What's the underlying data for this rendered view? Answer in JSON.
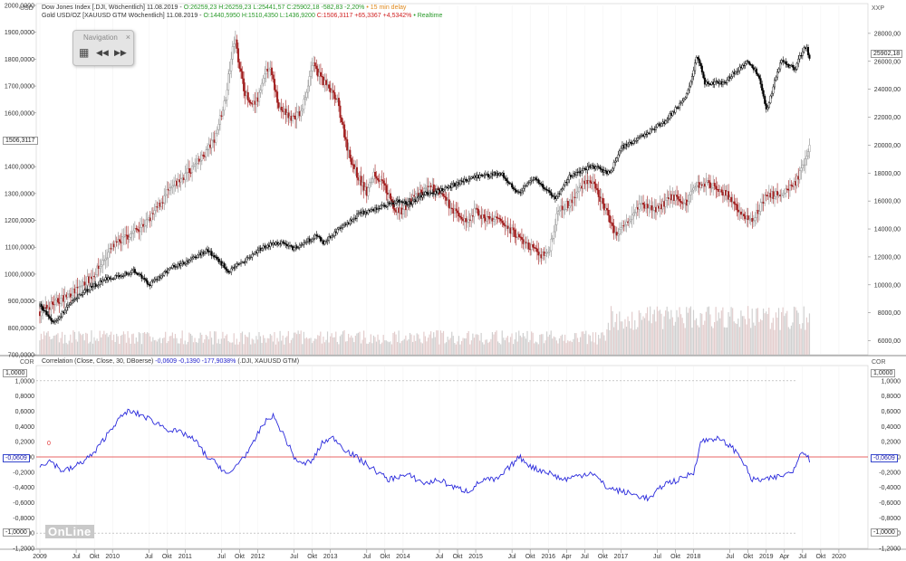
{
  "header": {
    "upper_left_unit": "USD",
    "upper_right_unit": "XXP",
    "lower_left_unit": "COR",
    "lower_right_unit": "COR",
    "line1_name": "Dow Jones Index [.DJI, Wöchentlich] 11.08.2019 -",
    "line1_values": "O:26259,23 H:26259,23 L:25441,57",
    "line1_change": "C:25902,18 -582,83 -2,20%",
    "line1_delay": "• 15 min delay",
    "line2_name": "Gold USD/OZ [XAUUSD GTM Wöchentlich] 11.08.2019 -",
    "line2_values": "O:1440,5950 H:1510,4350 L:1436,9200",
    "line2_change": "C:1506,3117 +65,3367 +4,5342%",
    "line2_realtime": "• Realtime",
    "corr_name": "Correlation (Close, Close, 30, DBoerse)",
    "corr_values": "-0,0609 -0,1390 -177,9038%",
    "corr_symbols": "(.DJI, XAUUSD GTM)"
  },
  "navigation": {
    "title": "Navigation",
    "close": "×",
    "grid_icon": "▦",
    "back_icon": "◀◀",
    "forward_icon": "▶▶"
  },
  "badges": {
    "gold_last": "1506,3117",
    "dow_last": "25902,18",
    "corr_left": "-0,0609",
    "corr_right": "-0,0609",
    "upper_line_left": "1,0000",
    "upper_line_right": "1,0000",
    "lower_line_left": "-1,0000",
    "lower_line_right": "-1,0000",
    "zero_label": "0"
  },
  "watermark": "OnLine",
  "colors": {
    "dow": "#000000",
    "gold_up": "#8c8c8c",
    "gold_down": "#a01c1c",
    "corr": "#2a2adc",
    "zero": "#e23030",
    "volume": "#e3cdcd",
    "volume_up": "#d0d0d0"
  },
  "chart_data": [
    {
      "type": "line",
      "ohlc_style": "candlestick",
      "series": [
        {
          "name": "Gold USD/OZ [XAUUSD GTM Wöchentlich]",
          "axis": "left",
          "x": [
            2009.0,
            2009.25,
            2009.5,
            2009.75,
            2010.0,
            2010.25,
            2010.5,
            2010.75,
            2011.0,
            2011.2,
            2011.4,
            2011.55,
            2011.68,
            2011.8,
            2011.9,
            2012.0,
            2012.15,
            2012.3,
            2012.45,
            2012.6,
            2012.75,
            2012.85,
            2012.95,
            2013.1,
            2013.25,
            2013.35,
            2013.5,
            2013.6,
            2013.75,
            2013.9,
            2014.0,
            2014.2,
            2014.4,
            2014.5,
            2014.75,
            2014.9,
            2015.0,
            2015.1,
            2015.3,
            2015.5,
            2015.7,
            2015.9,
            2016.0,
            2016.15,
            2016.3,
            2016.5,
            2016.6,
            2016.75,
            2016.95,
            2017.0,
            2017.25,
            2017.5,
            2017.7,
            2017.9,
            2018.0,
            2018.2,
            2018.45,
            2018.65,
            2018.8,
            2019.0,
            2019.2,
            2019.4,
            2019.55,
            2019.61
          ],
          "values": [
            860,
            900,
            940,
            1000,
            1100,
            1150,
            1200,
            1300,
            1370,
            1420,
            1500,
            1650,
            1880,
            1700,
            1620,
            1650,
            1780,
            1620,
            1580,
            1600,
            1780,
            1740,
            1700,
            1640,
            1450,
            1380,
            1300,
            1380,
            1320,
            1230,
            1240,
            1300,
            1320,
            1300,
            1220,
            1190,
            1240,
            1210,
            1200,
            1160,
            1110,
            1070,
            1080,
            1250,
            1260,
            1350,
            1340,
            1260,
            1140,
            1170,
            1260,
            1240,
            1290,
            1260,
            1330,
            1340,
            1300,
            1220,
            1200,
            1290,
            1300,
            1340,
            1420,
            1506
          ]
        },
        {
          "name": "Dow Jones Index [.DJI, Wöchentlich]",
          "axis": "right",
          "x": [
            2009.0,
            2009.2,
            2009.4,
            2009.6,
            2009.9,
            2010.3,
            2010.5,
            2010.8,
            2011.0,
            2011.3,
            2011.6,
            2011.8,
            2012.1,
            2012.3,
            2012.5,
            2012.8,
            2012.9,
            2013.1,
            2013.4,
            2013.6,
            2013.9,
            2014.1,
            2014.3,
            2014.55,
            2014.8,
            2015.0,
            2015.35,
            2015.6,
            2015.8,
            2016.1,
            2016.3,
            2016.6,
            2016.85,
            2017.0,
            2017.3,
            2017.6,
            2017.9,
            2018.05,
            2018.15,
            2018.4,
            2018.6,
            2018.75,
            2018.9,
            2019.0,
            2019.2,
            2019.4,
            2019.5,
            2019.55,
            2019.61
          ],
          "values": [
            8500,
            7300,
            8500,
            9500,
            10400,
            11000,
            10000,
            11200,
            11600,
            12500,
            11000,
            11700,
            12800,
            13000,
            12600,
            13500,
            13000,
            13900,
            15100,
            15400,
            16000,
            15800,
            16500,
            16800,
            17400,
            17700,
            18000,
            16500,
            17700,
            16200,
            17800,
            18500,
            18000,
            19800,
            20700,
            21700,
            23500,
            26400,
            24500,
            24400,
            25400,
            26000,
            25000,
            22500,
            26000,
            25500,
            26800,
            27000,
            25902
          ]
        },
        {
          "name": "Correlation (Close, Close, 30, DBoerse)",
          "axis": "correlation",
          "x": [
            2009.0,
            2009.15,
            2009.3,
            2009.45,
            2009.6,
            2009.75,
            2010.0,
            2010.2,
            2010.4,
            2010.6,
            2010.8,
            2011.0,
            2011.15,
            2011.3,
            2011.45,
            2011.6,
            2011.75,
            2011.9,
            2012.05,
            2012.2,
            2012.35,
            2012.5,
            2012.6,
            2012.75,
            2012.9,
            2013.05,
            2013.2,
            2013.35,
            2013.5,
            2013.65,
            2013.8,
            2013.95,
            2014.1,
            2014.3,
            2014.5,
            2014.7,
            2014.9,
            2015.1,
            2015.3,
            2015.5,
            2015.6,
            2015.8,
            2016.0,
            2016.2,
            2016.4,
            2016.6,
            2016.8,
            2017.0,
            2017.2,
            2017.4,
            2017.6,
            2017.8,
            2018.0,
            2018.1,
            2018.3,
            2018.5,
            2018.65,
            2018.8,
            2019.0,
            2019.2,
            2019.35,
            2019.5,
            2019.61
          ],
          "values": [
            -0.1,
            -0.05,
            -0.18,
            -0.15,
            -0.05,
            0.05,
            0.4,
            0.6,
            0.55,
            0.45,
            0.35,
            0.3,
            0.2,
            0.0,
            -0.1,
            -0.25,
            -0.05,
            0.1,
            0.4,
            0.55,
            0.3,
            0.0,
            -0.1,
            -0.05,
            0.2,
            0.25,
            0.1,
            0.0,
            -0.1,
            -0.2,
            -0.3,
            -0.25,
            -0.25,
            -0.35,
            -0.3,
            -0.4,
            -0.45,
            -0.3,
            -0.3,
            -0.1,
            0.0,
            -0.15,
            -0.2,
            -0.3,
            -0.25,
            -0.2,
            -0.4,
            -0.45,
            -0.5,
            -0.55,
            -0.35,
            -0.3,
            -0.2,
            0.2,
            0.25,
            0.15,
            0.0,
            -0.3,
            -0.3,
            -0.25,
            -0.2,
            0.1,
            -0.06
          ]
        }
      ],
      "y_left": {
        "ticks": [
          "2000,0000",
          "1900,0000",
          "1800,0000",
          "1700,0000",
          "1600,0000",
          "1500,0000",
          "1400,0000",
          "1300,0000",
          "1200,0000",
          "1100,0000",
          "1000,0000",
          "900,0000",
          "800,0000",
          "700,0000"
        ],
        "range": [
          700,
          2000
        ]
      },
      "y_right": {
        "ticks": [
          "28000,00",
          "26000,00",
          "24000,00",
          "22000,00",
          "20000,00",
          "18000,00",
          "16000,00",
          "14000,00",
          "12000,00",
          "10000,00",
          "8000,00",
          "6000,00"
        ],
        "range": [
          5000,
          30000
        ]
      },
      "y_correlation": {
        "ticks": [
          "1,0000",
          "0,8000",
          "0,6000",
          "0,4000",
          "0,2000",
          "0,0000",
          "-0,2000",
          "-0,4000",
          "-0,6000",
          "-0,8000",
          "-1,0000",
          "-1,2000"
        ],
        "range": [
          -1.2,
          1.2
        ]
      },
      "x_axis": {
        "range": [
          2008.95,
          2020.4
        ],
        "ticks": [
          {
            "label": "2009",
            "x": 2009.0
          },
          {
            "label": "Jul",
            "x": 2009.5
          },
          {
            "label": "Okt",
            "x": 2009.75
          },
          {
            "label": "2010",
            "x": 2010.0
          },
          {
            "label": "Jul",
            "x": 2010.5
          },
          {
            "label": "Okt",
            "x": 2010.75
          },
          {
            "label": "2011",
            "x": 2011.0
          },
          {
            "label": "Jul",
            "x": 2011.5
          },
          {
            "label": "Okt",
            "x": 2011.75
          },
          {
            "label": "2012",
            "x": 2012.0
          },
          {
            "label": "Jul",
            "x": 2012.5
          },
          {
            "label": "Okt",
            "x": 2012.75
          },
          {
            "label": "2013",
            "x": 2013.0
          },
          {
            "label": "Jul",
            "x": 2013.5
          },
          {
            "label": "Okt",
            "x": 2013.75
          },
          {
            "label": "2014",
            "x": 2014.0
          },
          {
            "label": "Jul",
            "x": 2014.5
          },
          {
            "label": "Okt",
            "x": 2014.75
          },
          {
            "label": "2015",
            "x": 2015.0
          },
          {
            "label": "Jul",
            "x": 2015.5
          },
          {
            "label": "Okt",
            "x": 2015.75
          },
          {
            "label": "2016",
            "x": 2016.0
          },
          {
            "label": "Apr",
            "x": 2016.25
          },
          {
            "label": "Jul",
            "x": 2016.5
          },
          {
            "label": "Okt",
            "x": 2016.75
          },
          {
            "label": "2017",
            "x": 2017.0
          },
          {
            "label": "Jul",
            "x": 2017.5
          },
          {
            "label": "Okt",
            "x": 2017.75
          },
          {
            "label": "2018",
            "x": 2018.0
          },
          {
            "label": "Jul",
            "x": 2018.5
          },
          {
            "label": "Okt",
            "x": 2018.75
          },
          {
            "label": "2019",
            "x": 2019.0
          },
          {
            "label": "Apr",
            "x": 2019.25
          },
          {
            "label": "Jul",
            "x": 2019.5
          },
          {
            "label": "Okt",
            "x": 2019.75
          },
          {
            "label": "2020",
            "x": 2020.0
          }
        ]
      },
      "reference_lines": {
        "correlation_zero": 0,
        "correlation_upper": 1.0,
        "correlation_lower": -1.0
      },
      "grid": true
    }
  ]
}
